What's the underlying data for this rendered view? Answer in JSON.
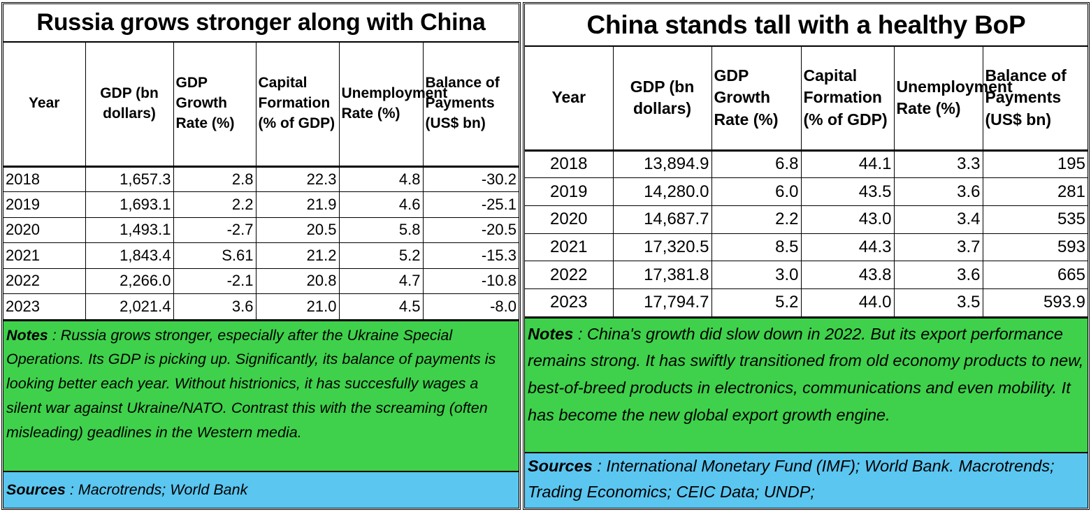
{
  "left": {
    "title": "Russia grows stronger along with China",
    "headers": [
      "Year",
      "GDP (bn dollars)",
      "GDP Growth Rate (%)",
      "Capital Formation (% of GDP)",
      "Unemployment Rate (%)",
      "Balance of Payments (US$ bn)"
    ],
    "rows": [
      [
        "2018",
        "1,657.3",
        "2.8",
        "22.3",
        "4.8",
        "-30.2"
      ],
      [
        "2019",
        "1,693.1",
        "2.2",
        "21.9",
        "4.6",
        "-25.1"
      ],
      [
        "2020",
        "1,493.1",
        "-2.7",
        "20.5",
        "5.8",
        "-20.5"
      ],
      [
        "2021",
        "1,843.4",
        "S.61",
        "21.2",
        "5.2",
        "-15.3"
      ],
      [
        "2022",
        "2,266.0",
        "-2.1",
        "20.8",
        "4.7",
        "-10.8"
      ],
      [
        "2023",
        "2,021.4",
        "3.6",
        "21.0",
        "4.5",
        "-8.0"
      ]
    ],
    "notes_label": "Notes",
    "notes_text": " : Russia grows stronger, especially after the Ukraine Special Operations. Its GDP is picking up. Significantly, its balance of payments is looking better each year. Without histrionics, it has succesfully wages a silent war against Ukraine/NATO. Contrast this with the screaming (often misleading) geadlines in the Western media.",
    "sources_label": "Sources",
    "sources_text": " : Macrotrends; World Bank"
  },
  "right": {
    "title": "China stands tall with a healthy BoP",
    "headers": [
      "Year",
      "GDP (bn dollars)",
      "GDP Growth Rate (%)",
      "Capital Formation (% of GDP)",
      "Unemployment Rate (%)",
      "Balance of Payments (US$ bn)"
    ],
    "rows": [
      [
        "2018",
        "13,894.9",
        "6.8",
        "44.1",
        "3.3",
        "195"
      ],
      [
        "2019",
        "14,280.0",
        "6.0",
        "43.5",
        "3.6",
        "281"
      ],
      [
        "2020",
        "14,687.7",
        "2.2",
        "43.0",
        "3.4",
        "535"
      ],
      [
        "2021",
        "17,320.5",
        "8.5",
        "44.3",
        "3.7",
        "593"
      ],
      [
        "2022",
        "17,381.8",
        "3.0",
        "43.8",
        "3.6",
        "665"
      ],
      [
        "2023",
        "17,794.7",
        "5.2",
        "44.0",
        "3.5",
        "593.9"
      ]
    ],
    "notes_label": "Notes",
    "notes_text": " : China's growth did slow down in 2022. But its export performance remains strong. It has swiftly transitioned from old economy products to new, best-of-breed products in electronics, communications and even mobility. It has become the new global export growth engine.",
    "sources_label": "Sources",
    "sources_text": " : International Monetary Fund (IMF); World Bank. Macrotrends; Trading Economics; CEIC Data; UNDP;"
  },
  "colors": {
    "notes_bg": "#3fd14b",
    "sources_bg": "#5bc6f0"
  }
}
